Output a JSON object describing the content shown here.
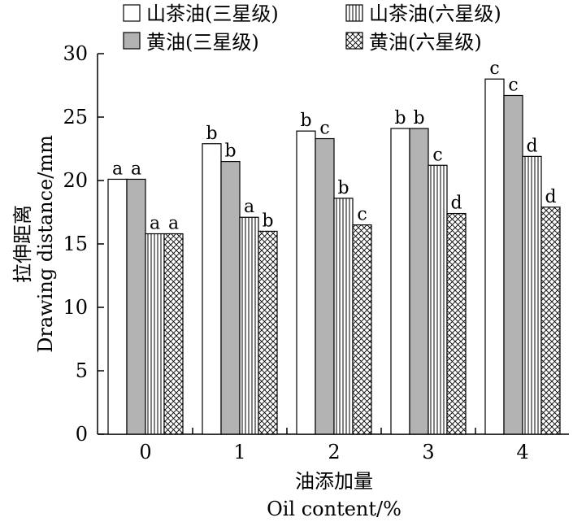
{
  "chart_data": {
    "type": "bar",
    "categories": [
      "0",
      "1",
      "2",
      "3",
      "4"
    ],
    "series": [
      {
        "name": "山茶油(三星级)",
        "pattern": "white",
        "values": [
          20.1,
          22.9,
          23.9,
          24.1,
          28.0
        ],
        "labels": [
          "a",
          "b",
          "b",
          "b",
          "c"
        ]
      },
      {
        "name": "黄油(三星级)",
        "pattern": "gray",
        "values": [
          20.1,
          21.5,
          23.3,
          24.1,
          26.7
        ],
        "labels": [
          "a",
          "b",
          "c",
          "b",
          "c"
        ]
      },
      {
        "name": "山茶油(六星级)",
        "pattern": "vlines",
        "values": [
          15.8,
          17.1,
          18.6,
          21.2,
          21.9
        ],
        "labels": [
          "a",
          "a",
          "b",
          "c",
          "d"
        ]
      },
      {
        "name": "黄油(六星级)",
        "pattern": "cross",
        "values": [
          15.8,
          16.0,
          16.5,
          17.4,
          17.9
        ],
        "labels": [
          "a",
          "b",
          "c",
          "d",
          "d"
        ]
      }
    ],
    "ylabel_cn": "拉伸距离",
    "ylabel_en": "Drawing distance/mm",
    "xlabel_cn": "油添加量",
    "xlabel_en": "Oil content/%",
    "ylim": [
      0,
      30
    ],
    "yticks": [
      0,
      5,
      10,
      15,
      20,
      25,
      30
    ],
    "grid": false,
    "legend_position": "top",
    "colors": {
      "gray": "#b3b3b3",
      "stroke": "#000000",
      "background": "#ffffff"
    }
  }
}
